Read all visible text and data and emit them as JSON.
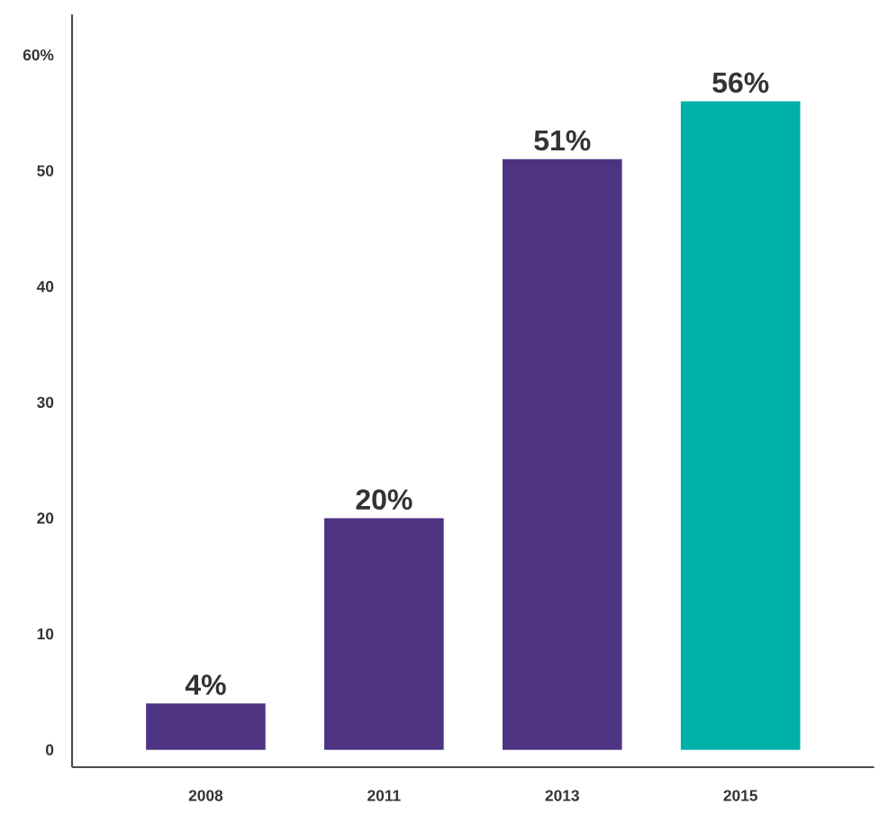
{
  "chart_data": {
    "type": "bar",
    "categories": [
      "2008",
      "2011",
      "2013",
      "2015"
    ],
    "values": [
      4,
      20,
      51,
      56
    ],
    "value_labels": [
      "4%",
      "20%",
      "51%",
      "56%"
    ],
    "colors": [
      "#4f3383",
      "#4f3383",
      "#4f3383",
      "#00b0aa"
    ],
    "ylim": [
      -1.5,
      63.5
    ],
    "yticks": [
      0,
      10,
      20,
      30,
      40,
      50,
      {
        "value": 60,
        "label": "60%"
      }
    ]
  }
}
